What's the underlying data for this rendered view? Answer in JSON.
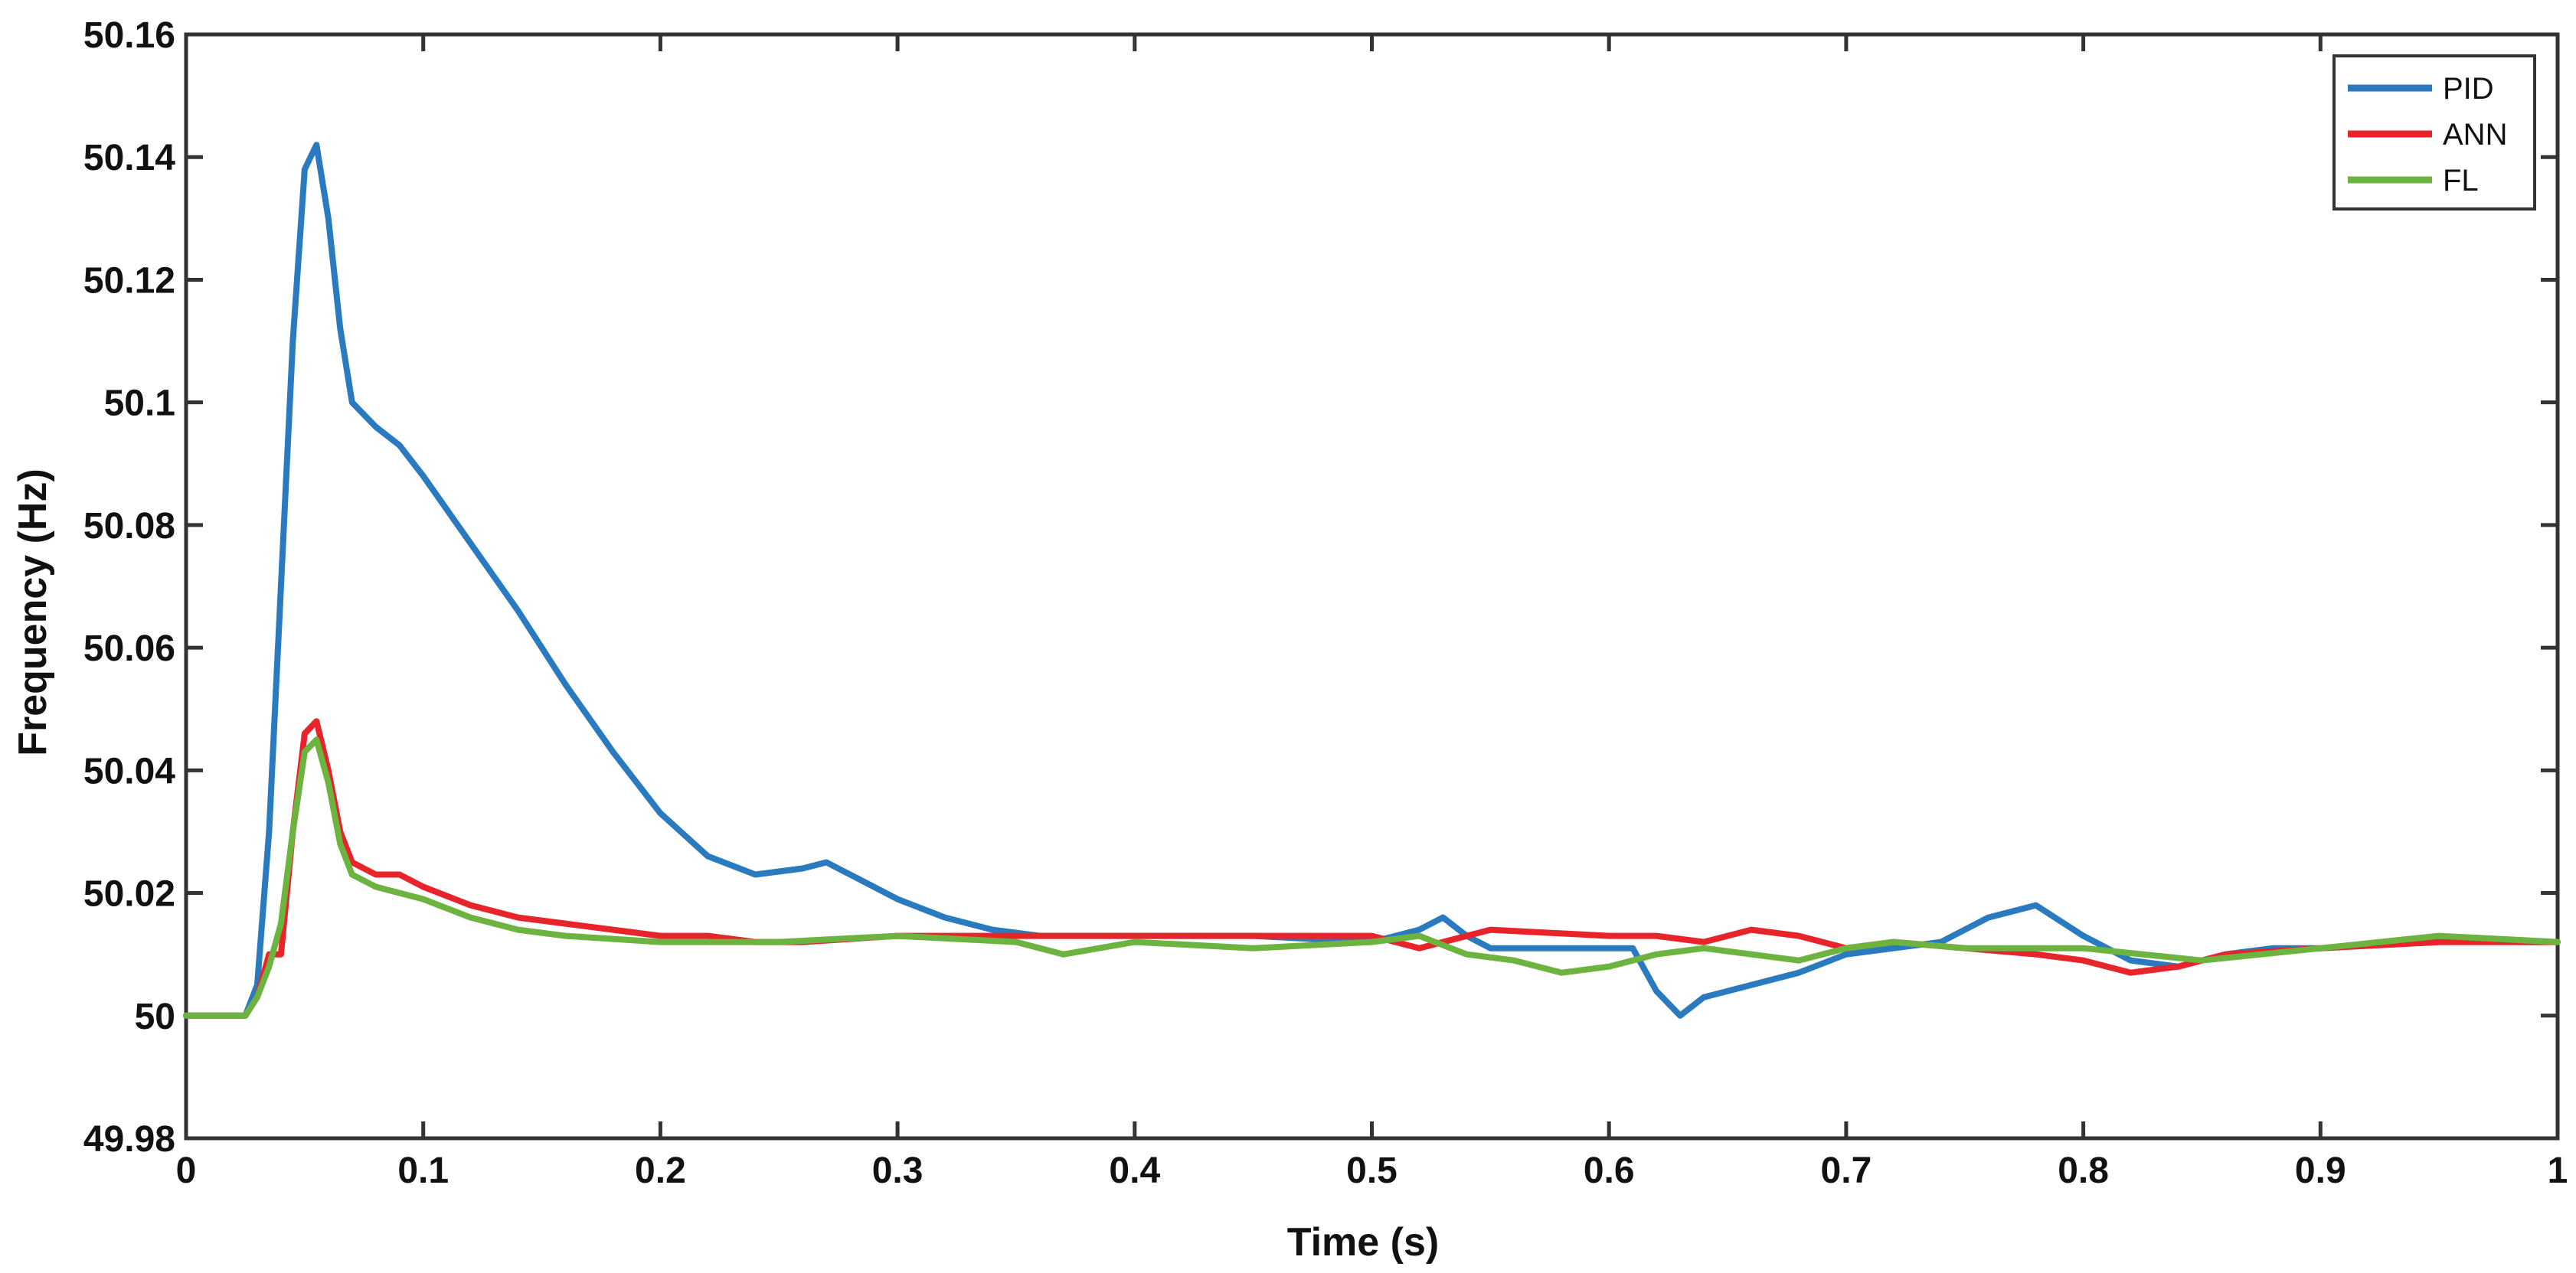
{
  "chart_data": {
    "type": "line",
    "title": "",
    "xlabel": "Time (s)",
    "ylabel": "Frequency (Hz)",
    "xlim": [
      0,
      1
    ],
    "ylim": [
      49.98,
      50.16
    ],
    "xticks": [
      0,
      0.1,
      0.2,
      0.3,
      0.4,
      0.5,
      0.6,
      0.7,
      0.8,
      0.9,
      1
    ],
    "xtick_labels": [
      "0",
      "0.1",
      "0.2",
      "0.3",
      "0.4",
      "0.5",
      "0.6",
      "0.7",
      "0.8",
      "0.9",
      "1"
    ],
    "yticks": [
      49.98,
      50,
      50.02,
      50.04,
      50.06,
      50.08,
      50.1,
      50.12,
      50.14,
      50.16
    ],
    "ytick_labels": [
      "49.98",
      "50",
      "50.02",
      "50.04",
      "50.06",
      "50.08",
      "50.1",
      "50.12",
      "50.14",
      "50.16"
    ],
    "grid": false,
    "legend_position": "top-right",
    "series": [
      {
        "name": "PID",
        "color": "#2a7ac0",
        "x": [
          0,
          0.025,
          0.03,
          0.035,
          0.04,
          0.045,
          0.05,
          0.055,
          0.06,
          0.065,
          0.07,
          0.08,
          0.09,
          0.1,
          0.12,
          0.14,
          0.16,
          0.18,
          0.2,
          0.22,
          0.24,
          0.26,
          0.27,
          0.28,
          0.3,
          0.32,
          0.34,
          0.36,
          0.4,
          0.45,
          0.5,
          0.52,
          0.53,
          0.54,
          0.55,
          0.6,
          0.61,
          0.62,
          0.63,
          0.64,
          0.66,
          0.68,
          0.7,
          0.72,
          0.74,
          0.76,
          0.78,
          0.8,
          0.82,
          0.84,
          0.86,
          0.88,
          0.9,
          0.95,
          1.0
        ],
        "y": [
          50.0,
          50.0,
          50.005,
          50.03,
          50.07,
          50.11,
          50.138,
          50.142,
          50.13,
          50.112,
          50.1,
          50.096,
          50.093,
          50.088,
          50.077,
          50.066,
          50.054,
          50.043,
          50.033,
          50.026,
          50.023,
          50.024,
          50.025,
          50.023,
          50.019,
          50.016,
          50.014,
          50.013,
          50.013,
          50.013,
          50.012,
          50.014,
          50.016,
          50.013,
          50.011,
          50.011,
          50.011,
          50.004,
          50.0,
          50.003,
          50.005,
          50.007,
          50.01,
          50.011,
          50.012,
          50.016,
          50.018,
          50.013,
          50.009,
          50.008,
          50.01,
          50.011,
          50.011,
          50.012,
          50.012
        ]
      },
      {
        "name": "ANN",
        "color": "#e8242b",
        "x": [
          0,
          0.025,
          0.03,
          0.035,
          0.04,
          0.045,
          0.05,
          0.055,
          0.06,
          0.065,
          0.07,
          0.08,
          0.09,
          0.1,
          0.12,
          0.14,
          0.16,
          0.18,
          0.2,
          0.22,
          0.24,
          0.26,
          0.3,
          0.35,
          0.4,
          0.45,
          0.5,
          0.51,
          0.52,
          0.55,
          0.6,
          0.62,
          0.64,
          0.66,
          0.68,
          0.7,
          0.72,
          0.75,
          0.78,
          0.8,
          0.82,
          0.84,
          0.86,
          0.9,
          0.95,
          1.0
        ],
        "y": [
          50.0,
          50.0,
          50.003,
          50.01,
          50.01,
          50.03,
          50.046,
          50.048,
          50.04,
          50.03,
          50.025,
          50.023,
          50.023,
          50.021,
          50.018,
          50.016,
          50.015,
          50.014,
          50.013,
          50.013,
          50.012,
          50.012,
          50.013,
          50.013,
          50.013,
          50.013,
          50.013,
          50.012,
          50.011,
          50.014,
          50.013,
          50.013,
          50.012,
          50.014,
          50.013,
          50.011,
          50.012,
          50.011,
          50.01,
          50.009,
          50.007,
          50.008,
          50.01,
          50.011,
          50.012,
          50.012
        ]
      },
      {
        "name": "FL",
        "color": "#6cb33f",
        "x": [
          0,
          0.025,
          0.03,
          0.035,
          0.04,
          0.045,
          0.05,
          0.055,
          0.06,
          0.065,
          0.07,
          0.08,
          0.1,
          0.12,
          0.14,
          0.16,
          0.2,
          0.25,
          0.3,
          0.35,
          0.37,
          0.4,
          0.45,
          0.5,
          0.52,
          0.54,
          0.56,
          0.58,
          0.6,
          0.62,
          0.64,
          0.66,
          0.68,
          0.7,
          0.72,
          0.75,
          0.8,
          0.85,
          0.9,
          0.95,
          1.0
        ],
        "y": [
          50.0,
          50.0,
          50.003,
          50.008,
          50.015,
          50.03,
          50.043,
          50.045,
          50.038,
          50.028,
          50.023,
          50.021,
          50.019,
          50.016,
          50.014,
          50.013,
          50.012,
          50.012,
          50.013,
          50.012,
          50.01,
          50.012,
          50.011,
          50.012,
          50.013,
          50.01,
          50.009,
          50.007,
          50.008,
          50.01,
          50.011,
          50.01,
          50.009,
          50.011,
          50.012,
          50.011,
          50.011,
          50.009,
          50.011,
          50.013,
          50.012
        ]
      }
    ]
  }
}
